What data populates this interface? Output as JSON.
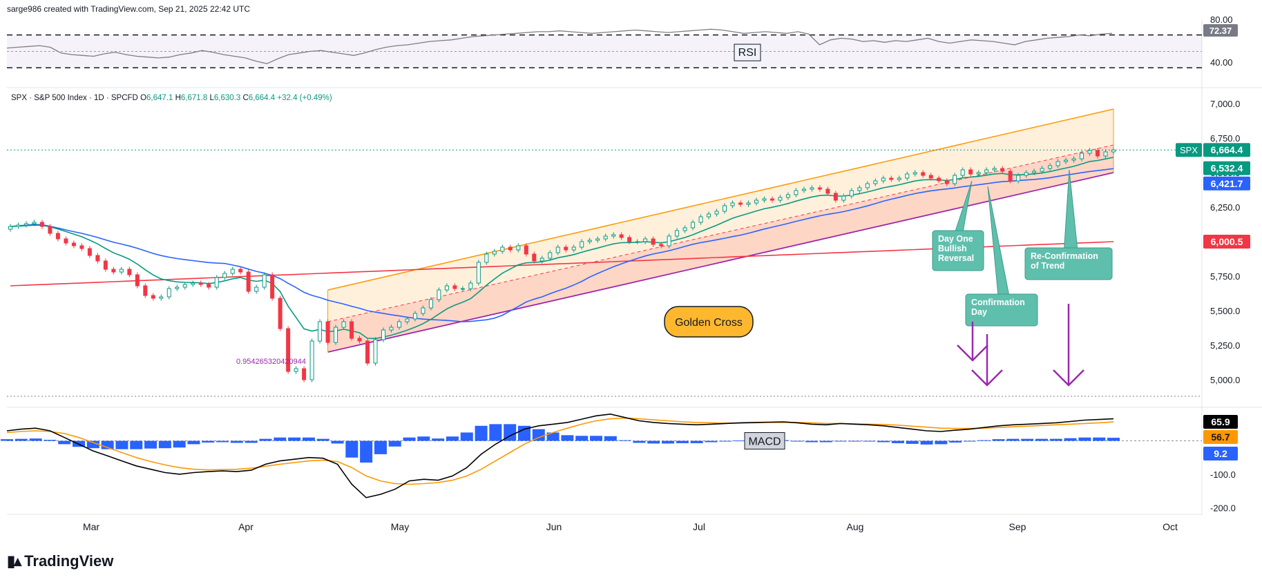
{
  "header": {
    "watermark": "sarge986 created with TradingView.com, Sep 21, 2025 22:42 UTC"
  },
  "brand": {
    "name": "TradingView",
    "logo": "tv-logo-icon"
  },
  "symbol_line": {
    "title": "SPX · S&P 500 Index · 1D · SPCFD",
    "o_label": "O",
    "o": "6,647.1",
    "h_label": "H",
    "h": "6,671.8",
    "l_label": "L",
    "l": "6,630.3",
    "c_label": "C",
    "c": "6,664.4",
    "chg": "+32.4 (+0.49%)"
  },
  "colors": {
    "up": "#089981",
    "down": "#f23645",
    "ema_green": "#089981",
    "ma_blue": "#2962ff",
    "ma_red": "#f23645",
    "channel": "#ff9800",
    "purple": "#9c27b0",
    "macd_line": "#000000",
    "signal": "#ff9800",
    "hist": "#2962ff",
    "callout": "#5fbfad"
  },
  "chart_data": [
    {
      "type": "line",
      "panel": "rsi",
      "label": "RSI",
      "ytick_labels": [
        "40.00",
        "80.00"
      ],
      "last_value_label": "72.37",
      "levels": [
        70,
        30
      ],
      "values": [
        54,
        55,
        56,
        57,
        55,
        48,
        46,
        45,
        44,
        47,
        49,
        46,
        44,
        43,
        42,
        43,
        46,
        48,
        51,
        49,
        46,
        44,
        42,
        38,
        35,
        41,
        46,
        48,
        50,
        51,
        49,
        47,
        45,
        48,
        52,
        55,
        57,
        58,
        60,
        62,
        63,
        64,
        66,
        68,
        69,
        70,
        71,
        72,
        73,
        74,
        74,
        75,
        74,
        73,
        72,
        73,
        74,
        75,
        76,
        75,
        74,
        73,
        74,
        75,
        76,
        77,
        76,
        74,
        72,
        73,
        74,
        73,
        72,
        74,
        71,
        58,
        64,
        66,
        65,
        62,
        63,
        61,
        63,
        62,
        64,
        66,
        62,
        60,
        62,
        64,
        63,
        62,
        60,
        58,
        62,
        64,
        66,
        67,
        68,
        70,
        69,
        71,
        72
      ]
    },
    {
      "type": "candlestick",
      "panel": "price",
      "x_labels": [
        "Mar",
        "Apr",
        "May",
        "Jun",
        "Jul",
        "Aug",
        "Sep",
        "Oct"
      ],
      "ytick_labels": [
        "5,000.0",
        "5,250.0",
        "5,500.0",
        "5,750.0",
        "6,000.0",
        "6,250.0",
        "6,500.0",
        "6,750.0",
        "7,000.0"
      ],
      "ylim": [
        4850,
        7050
      ],
      "closes": [
        6110,
        6120,
        6130,
        6140,
        6110,
        6060,
        6020,
        5990,
        5970,
        5950,
        5900,
        5860,
        5800,
        5780,
        5800,
        5760,
        5680,
        5610,
        5590,
        5600,
        5660,
        5670,
        5690,
        5700,
        5690,
        5670,
        5740,
        5770,
        5800,
        5780,
        5640,
        5670,
        5760,
        5590,
        5370,
        5060,
        5080,
        5000,
        5280,
        5420,
        5270,
        5380,
        5420,
        5300,
        5280,
        5120,
        5290,
        5360,
        5380,
        5420,
        5440,
        5480,
        5520,
        5580,
        5650,
        5680,
        5660,
        5660,
        5700,
        5850,
        5910,
        5930,
        5960,
        5940,
        5970,
        5910,
        5860,
        5880,
        5920,
        5960,
        5940,
        5960,
        6000,
        6010,
        6020,
        6040,
        6050,
        6030,
        6000,
        6000,
        6020,
        5980,
        5970,
        6040,
        6080,
        6100,
        6140,
        6180,
        6200,
        6220,
        6260,
        6280,
        6270,
        6280,
        6300,
        6310,
        6300,
        6320,
        6340,
        6370,
        6380,
        6390,
        6380,
        6350,
        6300,
        6330,
        6370,
        6390,
        6420,
        6440,
        6460,
        6450,
        6460,
        6490,
        6500,
        6480,
        6460,
        6440,
        6420,
        6480,
        6520,
        6490,
        6500,
        6520,
        6530,
        6510,
        6440,
        6480,
        6500,
        6510,
        6530,
        6550,
        6580,
        6590,
        6600,
        6640,
        6660,
        6620,
        6650,
        6664
      ],
      "ema20_last": "6,532.4",
      "ma50_last": "6,421.7",
      "ma200_last": "6,000.5",
      "price_last": "6,664.4",
      "price_label": "SPX",
      "fib_label": "0.954265320420944",
      "annotations": [
        "Day One Bullish Reversal",
        "Confirmation Day",
        "Re-Confirmation of Trend",
        "Golden Cross"
      ]
    },
    {
      "type": "histogram",
      "panel": "macd",
      "label": "MACD",
      "ytick_labels": [
        "-100.0",
        "-200.0"
      ],
      "macd_last": "65.9",
      "signal_last": "56.7",
      "hist_last": "9.2",
      "ylim": [
        -220,
        90
      ],
      "macd": [
        30,
        35,
        38,
        30,
        10,
        -10,
        -30,
        -45,
        -60,
        -75,
        -85,
        -95,
        -100,
        -95,
        -92,
        -90,
        -92,
        -88,
        -70,
        -60,
        -55,
        -50,
        -52,
        -70,
        -130,
        -170,
        -160,
        -145,
        -120,
        -115,
        -118,
        -105,
        -80,
        -40,
        -10,
        15,
        35,
        45,
        50,
        55,
        65,
        75,
        80,
        70,
        60,
        55,
        52,
        50,
        48,
        50,
        52,
        54,
        55,
        56,
        57,
        54,
        50,
        48,
        52,
        50,
        48,
        45,
        40,
        35,
        30,
        28,
        32,
        35,
        40,
        45,
        48,
        50,
        52,
        54,
        58,
        62,
        64,
        66
      ],
      "signal": [
        25,
        28,
        30,
        28,
        22,
        10,
        -5,
        -20,
        -35,
        -50,
        -62,
        -72,
        -80,
        -85,
        -87,
        -86,
        -85,
        -82,
        -76,
        -70,
        -65,
        -60,
        -58,
        -62,
        -80,
        -105,
        -120,
        -128,
        -130,
        -128,
        -125,
        -118,
        -105,
        -85,
        -60,
        -35,
        -10,
        10,
        25,
        38,
        50,
        60,
        66,
        68,
        66,
        63,
        60,
        57,
        55,
        54,
        53,
        53,
        54,
        55,
        55,
        55,
        54,
        52,
        52,
        51,
        50,
        49,
        47,
        44,
        41,
        38,
        37,
        37,
        38,
        40,
        42,
        44,
        46,
        48,
        50,
        52,
        54,
        56.7
      ],
      "hist": [
        5,
        6,
        7,
        3,
        -10,
        -18,
        -22,
        -25,
        -25,
        -25,
        -23,
        -22,
        -20,
        -10,
        -5,
        -4,
        -6,
        -6,
        6,
        10,
        10,
        10,
        6,
        -8,
        -50,
        -65,
        -40,
        -17,
        10,
        13,
        7,
        13,
        25,
        45,
        50,
        50,
        45,
        35,
        25,
        17,
        15,
        15,
        14,
        2,
        -6,
        -8,
        -8,
        -7,
        -7,
        -4,
        -1,
        1,
        1,
        1,
        2,
        -1,
        -4,
        -4,
        0,
        -1,
        -2,
        -4,
        -7,
        -9,
        -11,
        -10,
        -5,
        -2,
        2,
        5,
        6,
        6,
        6,
        6,
        8,
        10,
        10,
        9.2
      ]
    }
  ]
}
